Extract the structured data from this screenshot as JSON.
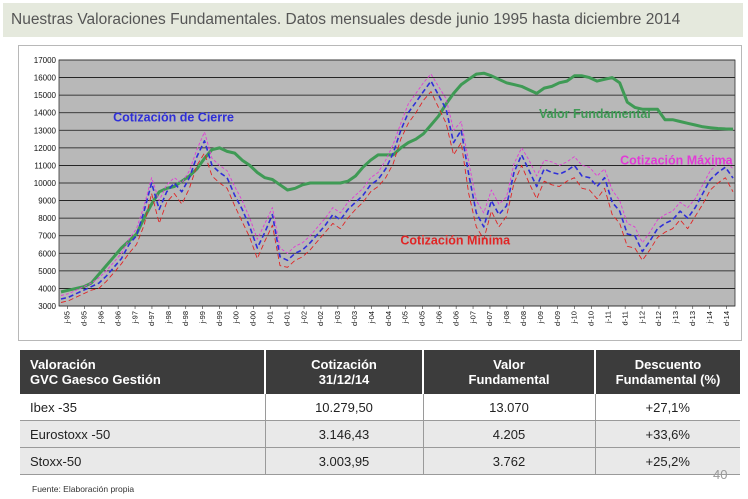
{
  "title": "Nuestras Valoraciones Fundamentales. Datos mensuales desde junio 1995 hasta diciembre 2014",
  "chart_data": {
    "type": "line",
    "ylim": [
      3000,
      17000
    ],
    "yticks": [
      3000,
      4000,
      5000,
      6000,
      7000,
      8000,
      9000,
      10000,
      11000,
      12000,
      13000,
      14000,
      15000,
      16000,
      17000
    ],
    "x_tick_labels": [
      "j-95",
      "d-95",
      "j-96",
      "d-96",
      "j-97",
      "d-97",
      "j-98",
      "d-98",
      "j-99",
      "d-99",
      "j-00",
      "d-00",
      "j-01",
      "d-01",
      "j-02",
      "d-02",
      "j-03",
      "d-03",
      "j-04",
      "d-04",
      "j-05",
      "d-05",
      "j-06",
      "d-06",
      "j-07",
      "d-07",
      "j-08",
      "d-08",
      "j-09",
      "d-09",
      "j-10",
      "d-10",
      "j-11",
      "d-11",
      "j-12",
      "d-12",
      "j-13",
      "d-13",
      "j-14",
      "d-14"
    ],
    "grid": true,
    "series": [
      {
        "name": "Valor Fundamental",
        "color": "#3f9a55",
        "style": "solid",
        "label_color": "#3f9a55",
        "values": [
          3800,
          3900,
          4000,
          4100,
          4300,
          4800,
          5300,
          5800,
          6300,
          6700,
          7100,
          8000,
          8800,
          9500,
          9700,
          9800,
          10100,
          10400,
          10800,
          11400,
          11900,
          12000,
          11800,
          11700,
          11300,
          11000,
          10600,
          10300,
          10200,
          9900,
          9600,
          9700,
          9900,
          10000,
          10000,
          10000,
          10000,
          10000,
          10100,
          10400,
          10900,
          11300,
          11600,
          11600,
          11600,
          12000,
          12300,
          12500,
          12800,
          13300,
          13800,
          14500,
          15100,
          15600,
          15900,
          16200,
          16250,
          16100,
          15900,
          15700,
          15600,
          15500,
          15300,
          15100,
          15400,
          15500,
          15700,
          15800,
          16100,
          16100,
          16000,
          15800,
          15900,
          16000,
          15700,
          14600,
          14300,
          14200,
          14200,
          14200,
          13600,
          13600,
          13500,
          13400,
          13300,
          13200,
          13150,
          13100,
          13080,
          13070
        ]
      },
      {
        "name": "Cotización de Cierre",
        "color": "#2f2fd8",
        "style": "dash",
        "label_color": "#2f2fd8",
        "values": [
          3400,
          3500,
          3700,
          3900,
          4100,
          4300,
          4700,
          5200,
          5700,
          6500,
          7000,
          8400,
          10000,
          8500,
          9500,
          10000,
          9500,
          10300,
          11500,
          12400,
          11000,
          10600,
          10300,
          9300,
          8500,
          7500,
          6300,
          7200,
          8200,
          5800,
          5600,
          6000,
          6200,
          6600,
          7100,
          7600,
          8200,
          7900,
          8500,
          8900,
          9300,
          9900,
          10200,
          10800,
          11700,
          13000,
          14000,
          14600,
          15200,
          15800,
          15000,
          14200,
          12300,
          13000,
          10500,
          8300,
          7500,
          9000,
          8200,
          8700,
          10600,
          11600,
          10700,
          9800,
          10800,
          10600,
          10500,
          10700,
          11000,
          10400,
          10300,
          9800,
          10300,
          8900,
          8400,
          7100,
          7000,
          6100,
          6700,
          7400,
          7700,
          7900,
          8400,
          8000,
          8600,
          9400,
          10200,
          10600,
          10900,
          10280
        ]
      },
      {
        "name": "Cotización Máxima",
        "color": "#e23bd7",
        "style": "dotted",
        "label_color": "#e23bd7",
        "values": [
          3600,
          3700,
          3900,
          4100,
          4300,
          4600,
          5000,
          5500,
          6000,
          6800,
          7400,
          8700,
          10300,
          9000,
          9900,
          10300,
          10000,
          10700,
          11900,
          12900,
          11400,
          11000,
          10700,
          9800,
          9000,
          8000,
          6800,
          7700,
          8600,
          6300,
          6000,
          6400,
          6600,
          7000,
          7500,
          8000,
          8600,
          8300,
          8900,
          9300,
          9700,
          10300,
          10600,
          11300,
          12200,
          13400,
          14500,
          15100,
          15700,
          16200,
          15500,
          14800,
          13000,
          13500,
          11200,
          9000,
          8300,
          9600,
          8800,
          9200,
          11100,
          12000,
          11300,
          10400,
          11300,
          11200,
          11000,
          11200,
          11500,
          11000,
          10900,
          10400,
          10800,
          9600,
          9000,
          7700,
          7500,
          6600,
          7200,
          7900,
          8200,
          8400,
          8900,
          8600,
          9100,
          9900,
          10700,
          11100,
          11300,
          10800
        ]
      },
      {
        "name": "Cotización Mínima",
        "color": "#e02525",
        "style": "dash",
        "label_color": "#e02525",
        "values": [
          3200,
          3300,
          3500,
          3700,
          3900,
          4000,
          4400,
          4900,
          5400,
          6000,
          6500,
          7600,
          9400,
          7700,
          8900,
          9400,
          8800,
          9700,
          11000,
          11700,
          10400,
          10000,
          9700,
          8700,
          7800,
          6900,
          5700,
          6700,
          7600,
          5300,
          5200,
          5600,
          5800,
          6200,
          6700,
          7200,
          7700,
          7400,
          8000,
          8500,
          8900,
          9500,
          9800,
          10300,
          11100,
          12500,
          13400,
          14000,
          14700,
          15200,
          14300,
          13400,
          11600,
          12300,
          9400,
          7500,
          6800,
          8400,
          7500,
          8100,
          10000,
          11000,
          10000,
          9100,
          10100,
          9900,
          9800,
          10100,
          10300,
          9700,
          9600,
          9100,
          9700,
          8200,
          7700,
          6400,
          6300,
          5600,
          6200,
          6900,
          7200,
          7400,
          7900,
          7400,
          8100,
          8800,
          9600,
          10000,
          10300,
          9500
        ]
      }
    ],
    "annotations": [
      {
        "text": "Cotización de Cierre",
        "color": "#2f2fd8"
      },
      {
        "text": "Valor Fundamental",
        "color": "#3f9a55"
      },
      {
        "text": "Cotización Máxima",
        "color": "#e23bd7"
      },
      {
        "text": "Cotización Mínima",
        "color": "#e02525"
      }
    ],
    "plot_background": "#b8b8b8"
  },
  "table": {
    "headers": [
      [
        "Valoración",
        "GVC Gaesco Gestión"
      ],
      [
        "Cotización",
        "31/12/14"
      ],
      [
        "Valor",
        "Fundamental"
      ],
      [
        "Descuento",
        "Fundamental (%)"
      ]
    ],
    "rows": [
      [
        "Ibex -35",
        "10.279,50",
        "13.070",
        "+27,1%"
      ],
      [
        "Eurostoxx -50",
        "3.146,43",
        "4.205",
        "+33,6%"
      ],
      [
        "Stoxx-50",
        "3.003,95",
        "3.762",
        "+25,2%"
      ]
    ]
  },
  "source": "Fuente: Elaboración propia",
  "page_number": "40"
}
